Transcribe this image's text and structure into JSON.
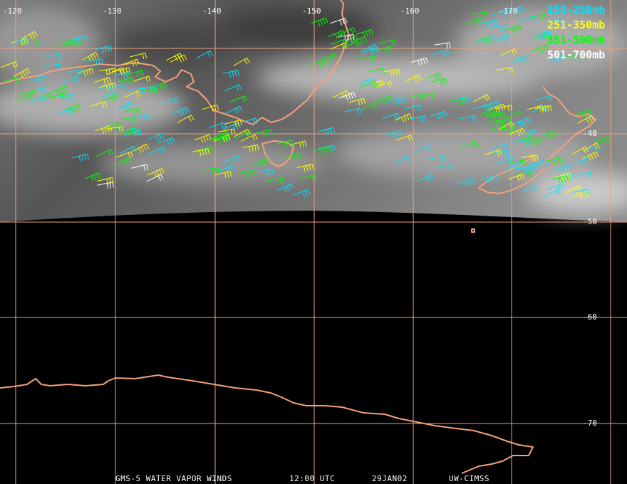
{
  "map": {
    "lon_labels": [
      "-120",
      "-130",
      "-140",
      "-150",
      "-160",
      "-170"
    ],
    "lat_labels": [
      "-40",
      "-50",
      "-60",
      "-70"
    ]
  },
  "legend": [
    {
      "label": "150-250mb",
      "color": "#00e5ff"
    },
    {
      "label": "251-350mb",
      "color": "#ffff00"
    },
    {
      "label": "351-500mb",
      "color": "#00ff00"
    },
    {
      "label": "501-700mb",
      "color": "#ffffff"
    }
  ],
  "footer": {
    "satellite": "GMS-5 WATER VAPOR WINDS",
    "time": "12:00 UTC",
    "date": "29JAN02",
    "source": "UW-CIMSS"
  }
}
